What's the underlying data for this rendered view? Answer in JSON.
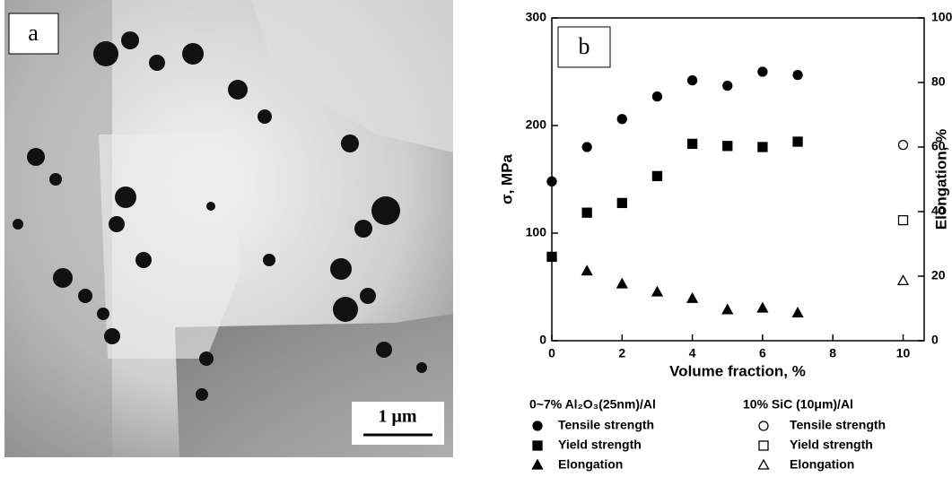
{
  "figure": {
    "panel_a": {
      "label": "a",
      "scale_bar": "1 μm"
    }
  },
  "chart_data": {
    "type": "scatter",
    "panel_label": "b",
    "xlabel": "Volume fraction, %",
    "ylabel": "σ, MPa",
    "y2label": "Elongation, %",
    "xlim": [
      0,
      10.6
    ],
    "xticks": [
      0,
      2,
      4,
      6,
      8,
      10
    ],
    "ylim": [
      0,
      300
    ],
    "yticks": [
      0,
      100,
      200,
      300
    ],
    "y2lim": [
      0,
      100
    ],
    "y2ticks": [
      0,
      20,
      40,
      60,
      80,
      100
    ],
    "series_groups": [
      {
        "name": "0~7% Al₂O₃(25nm)/Al",
        "series": [
          {
            "name": "Tensile strength",
            "color": "#000000",
            "marker": "circle",
            "filled": true,
            "x": [
              0,
              1,
              2,
              3,
              4,
              5,
              6,
              7
            ],
            "values": [
              148,
              180,
              206,
              227,
              242,
              237,
              250,
              247
            ]
          },
          {
            "name": "Yield strength",
            "color": "#000000",
            "marker": "square",
            "filled": true,
            "x": [
              0,
              1,
              2,
              3,
              4,
              5,
              6,
              7
            ],
            "values": [
              78,
              119,
              128,
              153,
              183,
              181,
              180,
              185
            ]
          },
          {
            "name": "Elongation",
            "color": "#000000",
            "marker": "triangle",
            "filled": true,
            "axis": "y2",
            "x": [
              1,
              2,
              3,
              4,
              5,
              6,
              7
            ],
            "values": [
              21.5,
              17.5,
              15,
              13,
              9.5,
              10,
              8.5
            ]
          }
        ]
      },
      {
        "name": "10% SiC (10μm)/Al",
        "series": [
          {
            "name": "Tensile strength",
            "color": "#000000",
            "marker": "circle",
            "filled": false,
            "x": [
              10
            ],
            "values": [
              182
            ]
          },
          {
            "name": "Yield strength",
            "color": "#000000",
            "marker": "square",
            "filled": false,
            "x": [
              10
            ],
            "values": [
              112
            ]
          },
          {
            "name": "Elongation",
            "color": "#000000",
            "marker": "triangle",
            "filled": false,
            "axis": "y2",
            "x": [
              10
            ],
            "values": [
              18.5
            ]
          }
        ]
      }
    ]
  }
}
